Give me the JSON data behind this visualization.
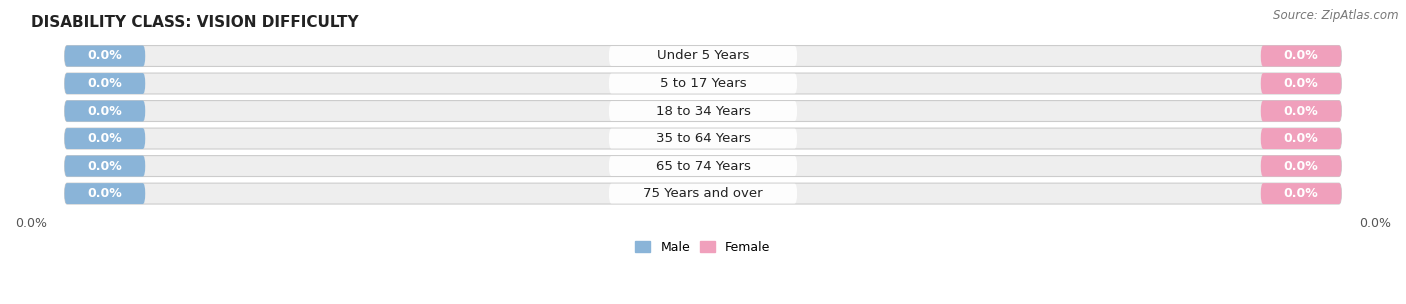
{
  "title": "DISABILITY CLASS: VISION DIFFICULTY",
  "source": "Source: ZipAtlas.com",
  "categories": [
    "Under 5 Years",
    "5 to 17 Years",
    "18 to 34 Years",
    "35 to 64 Years",
    "65 to 74 Years",
    "75 Years and over"
  ],
  "male_values": [
    0.0,
    0.0,
    0.0,
    0.0,
    0.0,
    0.0
  ],
  "female_values": [
    0.0,
    0.0,
    0.0,
    0.0,
    0.0,
    0.0
  ],
  "male_color": "#8ab4d8",
  "female_color": "#f0a0bc",
  "male_label": "Male",
  "female_label": "Female",
  "row_bg_color": "#eeeeee",
  "row_border_color": "#cccccc",
  "title_fontsize": 11,
  "source_fontsize": 8.5,
  "label_fontsize": 9,
  "cat_fontsize": 9.5,
  "tick_fontsize": 9,
  "figsize": [
    14.06,
    3.04
  ],
  "dpi": 100
}
